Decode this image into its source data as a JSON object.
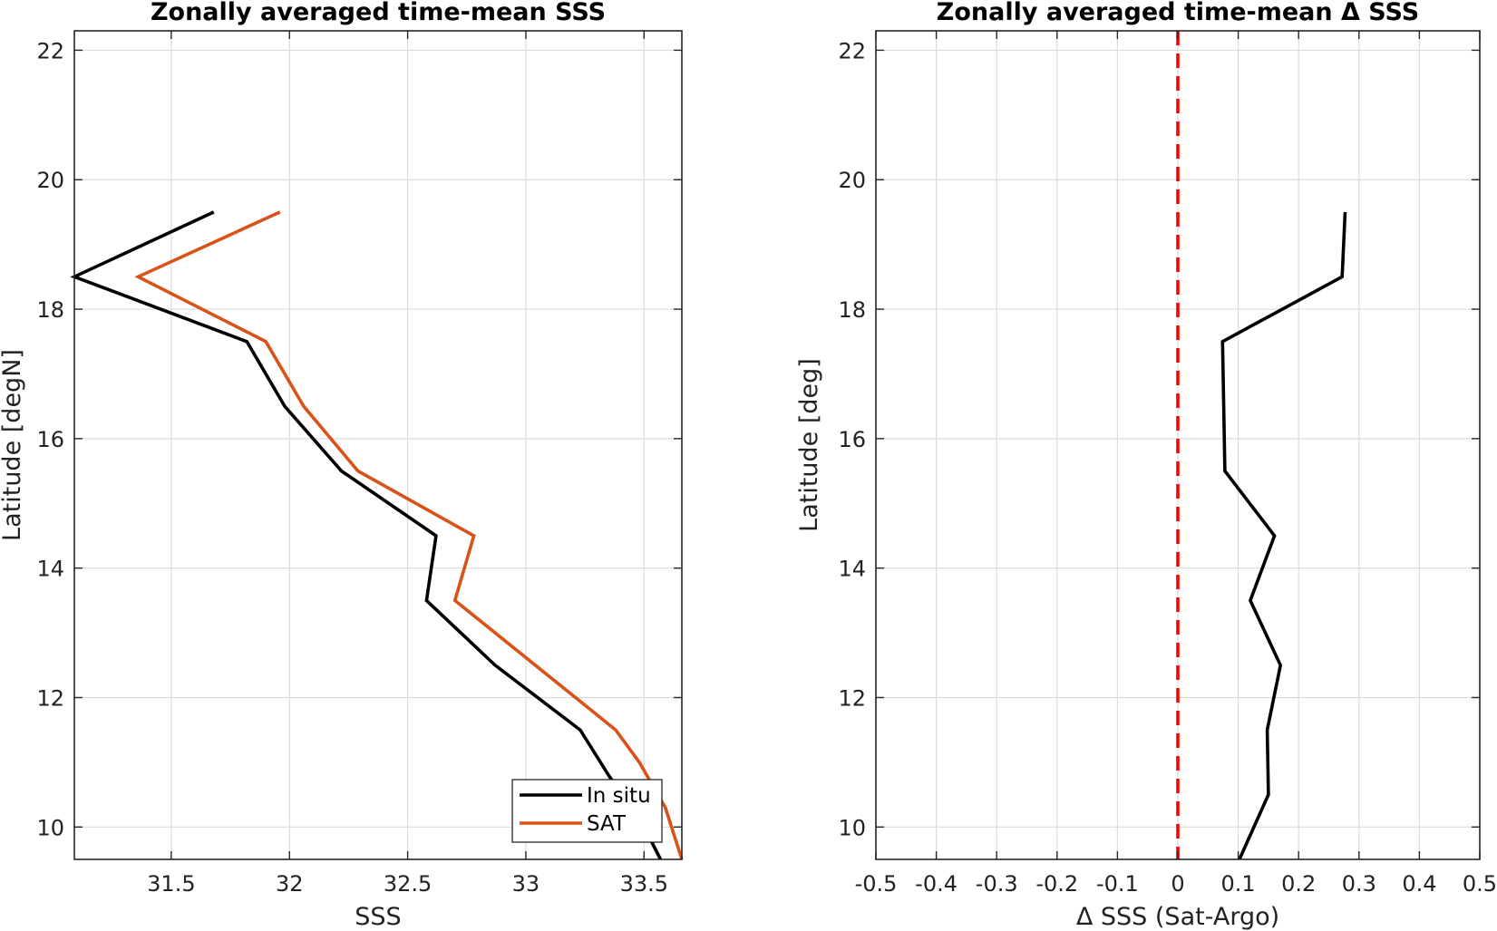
{
  "chart_data": [
    {
      "type": "line",
      "title": "Zonally averaged time-mean SSS",
      "xlabel": "SSS",
      "ylabel": "Latitude [degN]",
      "xlim": [
        31.09,
        33.66
      ],
      "ylim": [
        9.5,
        22.3
      ],
      "xticks": [
        "31.5",
        "32",
        "32.5",
        "33",
        "33.5"
      ],
      "yticks": [
        "10",
        "12",
        "14",
        "16",
        "18",
        "20",
        "22"
      ],
      "grid": true,
      "legend": "bottom-right",
      "series": [
        {
          "name": "In situ",
          "color": "#000000",
          "points": [
            [
              31.68,
              19.5
            ],
            [
              31.09,
              18.5
            ],
            [
              31.82,
              17.5
            ],
            [
              31.98,
              16.5
            ],
            [
              32.22,
              15.5
            ],
            [
              32.62,
              14.5
            ],
            [
              32.58,
              13.5
            ],
            [
              32.87,
              12.5
            ],
            [
              33.23,
              11.5
            ],
            [
              33.35,
              10.8
            ],
            [
              33.5,
              10.0
            ],
            [
              33.57,
              9.5
            ]
          ]
        },
        {
          "name": "SAT",
          "color": "#D95319",
          "points": [
            [
              31.96,
              19.5
            ],
            [
              31.36,
              18.5
            ],
            [
              31.9,
              17.5
            ],
            [
              32.06,
              16.5
            ],
            [
              32.29,
              15.5
            ],
            [
              32.78,
              14.5
            ],
            [
              32.7,
              13.5
            ],
            [
              33.04,
              12.5
            ],
            [
              33.38,
              11.5
            ],
            [
              33.48,
              11.0
            ],
            [
              33.59,
              10.3
            ],
            [
              33.66,
              9.5
            ]
          ]
        }
      ]
    },
    {
      "type": "line",
      "title": "Zonally averaged time-mean Δ SSS",
      "xlabel": "Δ SSS (Sat-Argo)",
      "ylabel": "Latitude [deg]",
      "xlim": [
        -0.5,
        0.5
      ],
      "ylim": [
        9.5,
        22.3
      ],
      "xticks": [
        "-0.5",
        "-0.4",
        "-0.3",
        "-0.2",
        "-0.1",
        "0",
        "0.1",
        "0.2",
        "0.3",
        "0.4",
        "0.5"
      ],
      "yticks": [
        "10",
        "12",
        "14",
        "16",
        "18",
        "20",
        "22"
      ],
      "grid": true,
      "zero_line": {
        "x": 0,
        "color": "#FF0000",
        "style": "dashed"
      },
      "series": [
        {
          "color": "#000000",
          "points": [
            [
              0.277,
              19.5
            ],
            [
              0.272,
              18.5
            ],
            [
              0.074,
              17.5
            ],
            [
              0.076,
              16.5
            ],
            [
              0.078,
              15.5
            ],
            [
              0.16,
              14.5
            ],
            [
              0.12,
              13.5
            ],
            [
              0.17,
              12.5
            ],
            [
              0.148,
              11.5
            ],
            [
              0.15,
              10.5
            ],
            [
              0.102,
              9.5
            ]
          ]
        }
      ]
    }
  ]
}
